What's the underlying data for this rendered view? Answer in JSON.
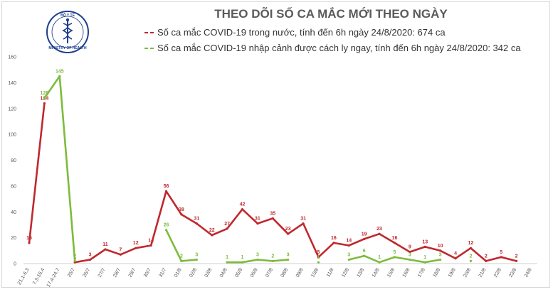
{
  "header": {
    "title": "THEO DÕI SỐ CA MẮC MỚI THEO NGÀY",
    "logo": {
      "icon": "ministry-of-health-caduceus-logo",
      "text_top": "BỘ Y TẾ",
      "text_bottom": "MINISTRY OF HEALTH"
    }
  },
  "colors": {
    "domestic": "#c0282d",
    "imported": "#7dbb3c",
    "title": "#5a5a5a"
  },
  "chart_data": {
    "type": "line",
    "title": "THEO DÕI SỐ CA MẮC MỚI THEO NGÀY",
    "xlabel": "",
    "ylabel": "",
    "ylim": [
      0,
      160
    ],
    "yticks": [
      0,
      20,
      40,
      60,
      80,
      100,
      120,
      140,
      160
    ],
    "grid": false,
    "legend_position": "top",
    "categories": [
      "21.1-6.3",
      "7.3-16.4",
      "17.4-24.7",
      "25/7",
      "26/7",
      "27/7",
      "28/7",
      "29/7",
      "30/7",
      "31/7",
      "01/8",
      "02/8",
      "03/8",
      "04/8",
      "05/8",
      "06/8",
      "07/8",
      "08/8",
      "09/8",
      "10/8",
      "11/8",
      "12/8",
      "13/8",
      "14/8",
      "15/8",
      "16/8",
      "17/8",
      "18/8",
      "19/8",
      "20/8",
      "21/8",
      "22/8",
      "23/8",
      "24/8"
    ],
    "series": [
      {
        "name": "Số ca mắc COVID-19 trong nước, tính đến 6h ngày 24/8/2020: 674 ca",
        "color": "#c0282d",
        "values": [
          16,
          124,
          null,
          1,
          3,
          11,
          7,
          12,
          14,
          56,
          38,
          31,
          22,
          27,
          42,
          31,
          35,
          23,
          31,
          5,
          16,
          14,
          19,
          23,
          16,
          9,
          13,
          10,
          4,
          12,
          2,
          5,
          2,
          null
        ],
        "labels": [
          "16",
          "124",
          "",
          "1",
          "3",
          "11",
          "7",
          "12",
          "14",
          "56",
          "38",
          "31",
          "22",
          "27",
          "42",
          "31",
          "35",
          "23",
          "31",
          "5",
          "16",
          "14",
          "19",
          "23",
          "16",
          "9",
          "13",
          "10",
          "4",
          "12",
          "2",
          "5",
          "2",
          ""
        ]
      },
      {
        "name": "Số ca mắc COVID-19 nhập cảnh được cách ly ngay, tính đến 6h ngày 24/8/2020: 342 ca",
        "color": "#7dbb3c",
        "values": [
          null,
          128,
          145,
          2,
          null,
          null,
          null,
          null,
          null,
          26,
          2,
          3,
          null,
          1,
          1,
          3,
          2,
          3,
          null,
          1,
          null,
          3,
          6,
          1,
          5,
          3,
          1,
          3,
          null,
          2,
          null,
          null,
          null,
          null
        ],
        "labels": [
          "",
          "128",
          "145",
          "2",
          "",
          "",
          "",
          "",
          "",
          "26",
          "2",
          "3",
          "",
          "1",
          "1",
          "3",
          "2",
          "3",
          "",
          "1",
          "",
          "3",
          "6",
          "1",
          "5",
          "3",
          "1",
          "3",
          "",
          "2",
          "",
          "",
          "",
          ""
        ]
      }
    ]
  }
}
